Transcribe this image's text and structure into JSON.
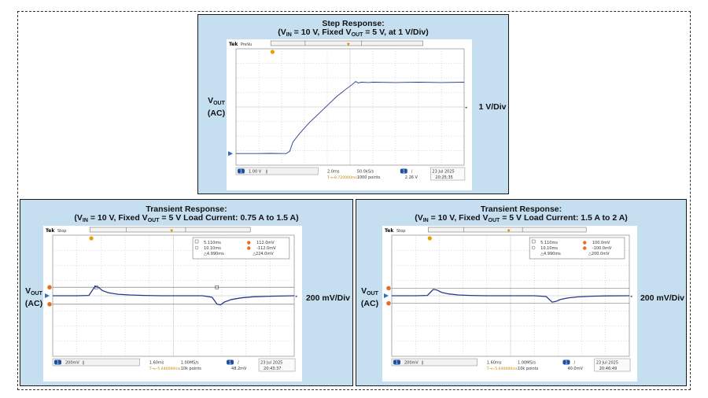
{
  "panels": [
    {
      "id": "step",
      "title_line1": "Step Response:",
      "title_line2_pre": "(V",
      "title_line2_sub1": "IN",
      "title_line2_mid": " = 10 V, Fixed V",
      "title_line2_sub2": "OUT",
      "title_line2_post": " = 5 V, at 1 V/Div)",
      "left_label_main": "V",
      "left_label_sub": "OUT",
      "left_label_line2": "(AC)",
      "right_label": "1 V/Div",
      "scope": {
        "brand": "Tek",
        "mode": "PreVu",
        "ch_number": "1",
        "ch_scale": "1.00 V",
        "ch_coupling": "∥",
        "timebase": "2.0ms",
        "sample_rate": "50.0kS/s",
        "trigger_ch": "1",
        "trigger_slope": "/",
        "trigger_level": "2.26 V",
        "trigger_pos": "T→▹8.720000ms",
        "record_length": "1000 points",
        "date": "23 Jul  2025",
        "time": "20:25:35",
        "chart_data": {
          "type": "line",
          "xlim": [
            0,
            10
          ],
          "ylim": [
            -4,
            4
          ],
          "series": [
            {
              "x": [
                0,
                0.5,
                1,
                1.5,
                2,
                2.2,
                2.35,
                2.5,
                2.8,
                3.2,
                3.6,
                4.0,
                4.4,
                4.8,
                5.1,
                5.25,
                5.35,
                5.5,
                5.8,
                6,
                7,
                8,
                9,
                10
              ],
              "y": [
                -3.2,
                -3.2,
                -3.2,
                -3.19,
                -3.2,
                -3.2,
                -3.05,
                -2.4,
                -1.8,
                -1.1,
                -0.5,
                0.1,
                0.7,
                1.2,
                1.55,
                1.75,
                1.65,
                1.7,
                1.68,
                1.7,
                1.68,
                1.7,
                1.68,
                1.7
              ]
            }
          ]
        }
      }
    },
    {
      "id": "transient1",
      "title_line1": "Transient Response:",
      "title_line2_pre": "(V",
      "title_line2_sub1": "IN",
      "title_line2_mid": " = 10 V, Fixed V",
      "title_line2_sub2": "OUT",
      "title_line2_post": " = 5 V Load Current: 0.75 A to 1.5 A)",
      "left_label_main": "V",
      "left_label_sub": "OUT",
      "left_label_line2": "(AC)",
      "right_label": "200 mV/Div",
      "scope": {
        "brand": "Tek",
        "mode": "Stop",
        "ch_number": "1",
        "ch_scale": "200mV",
        "ch_coupling": "∥",
        "timebase": "1.60ms",
        "sample_rate": "1.00MS/s",
        "trigger_ch": "1",
        "trigger_slope": "/",
        "trigger_level": "48.2mV",
        "trigger_pos": "T→▹-5.640000ms",
        "record_length": "10k points",
        "date": "23 Jul  2025",
        "time": "20:43:37",
        "cursor_readout": {
          "row1_time": "5.110ms",
          "row1_level": "112.0mV",
          "row2_time": "10.10ms",
          "row2_level": "-112.0mV",
          "row3_dtime": "△4.990ms",
          "row3_dlevel": "△224.0mV"
        },
        "chart_data": {
          "type": "line",
          "xlim": [
            0,
            10
          ],
          "ylim": [
            -4,
            4
          ],
          "cursors_v": [
            0.56,
            -0.56
          ],
          "cursors_t": [
            1.8,
            6.8
          ],
          "series": [
            {
              "x": [
                0,
                1,
                1.5,
                1.75,
                1.9,
                2.05,
                2.3,
                2.7,
                3.2,
                3.8,
                4.5,
                5.5,
                6.2,
                6.6,
                6.8,
                6.95,
                7.1,
                7.4,
                7.8,
                8.3,
                9,
                10
              ],
              "y": [
                0,
                0,
                0.02,
                0.62,
                0.55,
                0.35,
                0.2,
                0.1,
                0.05,
                0.02,
                0,
                0,
                0,
                -0.1,
                -0.55,
                -0.6,
                -0.42,
                -0.25,
                -0.14,
                -0.07,
                -0.03,
                0
              ]
            }
          ]
        }
      }
    },
    {
      "id": "transient2",
      "title_line1": "Transient Response:",
      "title_line2_pre": "(V",
      "title_line2_sub1": "IN",
      "title_line2_mid": " = 10 V, Fixed V",
      "title_line2_sub2": "OUT",
      "title_line2_post": " = 5 V Load Current: 1.5 A to 2 A)",
      "left_label_main": "V",
      "left_label_sub": "OUT",
      "left_label_line2": "(AC)",
      "right_label": "200 mV/Div",
      "scope": {
        "brand": "Tek",
        "mode": "Stop",
        "ch_number": "1",
        "ch_scale": "200mV",
        "ch_coupling": "∥",
        "timebase": "1.60ms",
        "sample_rate": "1.00MS/s",
        "trigger_ch": "1",
        "trigger_slope": "/",
        "trigger_level": "40.0mV",
        "trigger_pos": "T→▹-5.640000ms",
        "record_length": "10k points",
        "date": "23 Jul  2025",
        "time": "20:46:49",
        "cursor_readout": {
          "row1_time": "5.110ms",
          "row1_level": "100.0mV",
          "row2_time": "10.10ms",
          "row2_level": "-100.0mV",
          "row3_dtime": "△4.990ms",
          "row3_dlevel": "△200.0mV"
        },
        "chart_data": {
          "type": "line",
          "xlim": [
            0,
            10
          ],
          "ylim": [
            -4,
            4
          ],
          "cursors_v": [
            0.5,
            -0.5
          ],
          "series": [
            {
              "x": [
                0,
                1,
                1.5,
                1.75,
                1.9,
                2.1,
                2.4,
                2.8,
                3.3,
                4,
                5,
                6,
                6.5,
                6.75,
                6.9,
                7.1,
                7.4,
                7.8,
                8.4,
                9,
                10
              ],
              "y": [
                0,
                0,
                0.02,
                0.42,
                0.38,
                0.22,
                0.12,
                0.05,
                0.02,
                0,
                0,
                0,
                -0.05,
                -0.42,
                -0.38,
                -0.25,
                -0.15,
                -0.08,
                -0.03,
                -0.01,
                0
              ]
            }
          ]
        }
      }
    }
  ]
}
